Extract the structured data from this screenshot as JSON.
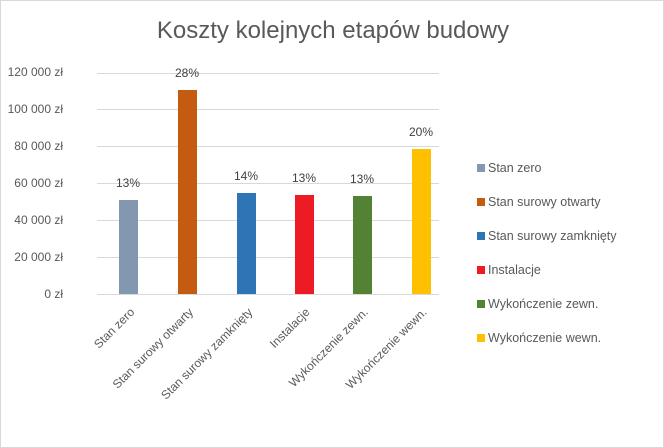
{
  "chart_data": {
    "type": "bar",
    "title": "Koszty kolejnych etapów budowy",
    "xlabel": "",
    "ylabel": "",
    "ylim": [
      0,
      120000
    ],
    "yticks": [
      "0 zł",
      "20 000 zł",
      "40 000 zł",
      "60 000 zł",
      "80 000 zł",
      "100 000 zł",
      "120 000 zł"
    ],
    "categories": [
      "Stan zero",
      "Stan surowy otwarty",
      "Stan surowy zamknięty",
      "Instalacje",
      "Wykończenie zewn.",
      "Wykończenie wewn."
    ],
    "values": [
      51000,
      111000,
      55000,
      54000,
      53000,
      79000
    ],
    "data_labels": [
      "13%",
      "28%",
      "14%",
      "13%",
      "13%",
      "20%"
    ],
    "colors": [
      "#8497b0",
      "#c55a11",
      "#2e75b6",
      "#ed1c24",
      "#548235",
      "#ffc000"
    ],
    "grid": true,
    "legend_position": "right"
  }
}
